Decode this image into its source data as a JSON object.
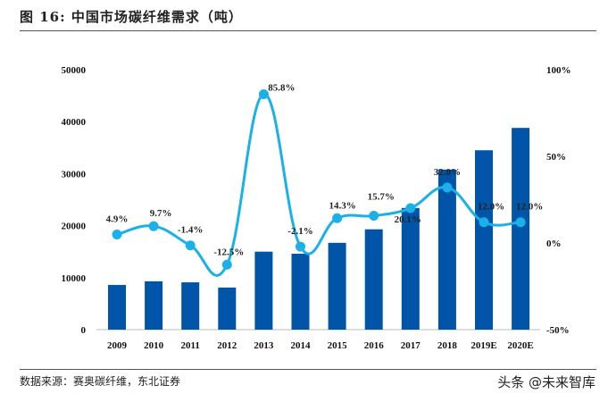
{
  "header": {
    "title": "图 16: 中国市场碳纤维需求（吨）"
  },
  "footer": {
    "source": "数据来源：赛奥碳纤维，东北证券",
    "watermark": "头条 @未来智库"
  },
  "colors": {
    "bar": "#0055a8",
    "line": "#1ab0e8"
  },
  "chart_data": {
    "type": "bar+line",
    "title": "",
    "categories": [
      "2009",
      "2010",
      "2011",
      "2012",
      "2013",
      "2014",
      "2015",
      "2016",
      "2017",
      "2018",
      "2019E",
      "2020E"
    ],
    "series": [
      {
        "type": "bar",
        "axis": "left",
        "values": [
          8600,
          9300,
          9100,
          8100,
          15000,
          14600,
          16700,
          19300,
          23400,
          30800,
          34500,
          38800
        ]
      },
      {
        "type": "line",
        "axis": "right",
        "values": [
          4.9,
          9.7,
          -1.4,
          -12.5,
          85.8,
          -2.1,
          14.3,
          15.7,
          20.1,
          32.0,
          12.0,
          12.0
        ],
        "labels": [
          "4.9%",
          "9.7%",
          "-1.4%",
          "-12.5%",
          "85.8%",
          "-2.1%",
          "14.3%",
          "15.7%",
          "20.1%",
          "32.0%",
          "12.0%",
          "12.0%"
        ]
      }
    ],
    "y_left": {
      "range": [
        0,
        50000
      ],
      "ticks": [
        "0",
        "10000",
        "20000",
        "30000",
        "40000",
        "50000"
      ]
    },
    "y_right": {
      "range": [
        -50,
        100
      ],
      "ticks": [
        "-50%",
        "0%",
        "50%",
        "100%"
      ]
    },
    "grid": false,
    "legend": "none"
  }
}
